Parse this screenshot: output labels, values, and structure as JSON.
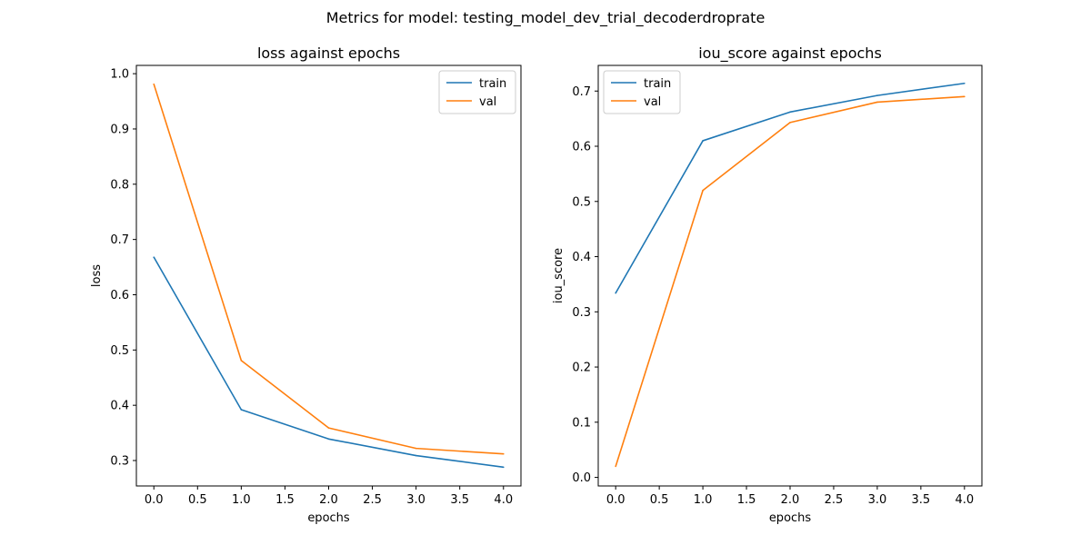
{
  "figure": {
    "suptitle": "Metrics for model: testing_model_dev_trial_decoderdroprate"
  },
  "colors": {
    "train": "#1f77b4",
    "val": "#ff7f0e"
  },
  "chart_data": [
    {
      "type": "line",
      "title": "loss against epochs",
      "xlabel": "epochs",
      "ylabel": "loss",
      "xlim": [
        -0.2,
        4.2
      ],
      "ylim": [
        0.254,
        1.015
      ],
      "xticks": [
        "0.0",
        "0.5",
        "1.0",
        "1.5",
        "2.0",
        "2.5",
        "3.0",
        "3.5",
        "4.0"
      ],
      "yticks": [
        "0.3",
        "0.4",
        "0.5",
        "0.6",
        "0.7",
        "0.8",
        "0.9",
        "1.0"
      ],
      "legend": "upper right",
      "x": [
        0,
        1,
        2,
        3,
        4
      ],
      "series": [
        {
          "name": "train",
          "values": [
            0.668,
            0.392,
            0.339,
            0.309,
            0.288
          ]
        },
        {
          "name": "val",
          "values": [
            0.981,
            0.481,
            0.359,
            0.322,
            0.312
          ]
        }
      ]
    },
    {
      "type": "line",
      "title": "iou_score against epochs",
      "xlabel": "epochs",
      "ylabel": "iou_score",
      "xlim": [
        -0.2,
        4.2
      ],
      "ylim": [
        -0.0155,
        0.7465
      ],
      "xticks": [
        "0.0",
        "0.5",
        "1.0",
        "1.5",
        "2.0",
        "2.5",
        "3.0",
        "3.5",
        "4.0"
      ],
      "yticks": [
        "0.0",
        "0.1",
        "0.2",
        "0.3",
        "0.4",
        "0.5",
        "0.6",
        "0.7"
      ],
      "legend": "upper left",
      "x": [
        0,
        1,
        2,
        3,
        4
      ],
      "series": [
        {
          "name": "train",
          "values": [
            0.334,
            0.61,
            0.662,
            0.692,
            0.714
          ]
        },
        {
          "name": "val",
          "values": [
            0.02,
            0.52,
            0.643,
            0.68,
            0.69
          ]
        }
      ]
    }
  ]
}
